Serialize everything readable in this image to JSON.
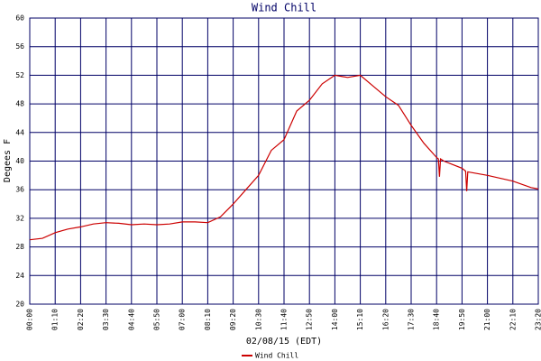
{
  "chart_data": {
    "type": "line",
    "title": "Wind Chill",
    "ylabel": "Degees F",
    "xlabel": "02/08/15 (EDT)",
    "xlim": [
      0,
      1400
    ],
    "ylim": [
      20,
      60
    ],
    "yticks": [
      20,
      24,
      28,
      32,
      36,
      40,
      44,
      48,
      52,
      56,
      60
    ],
    "xticks": [
      {
        "value": 0,
        "label": "00:00"
      },
      {
        "value": 70,
        "label": "01:10"
      },
      {
        "value": 140,
        "label": "02:20"
      },
      {
        "value": 210,
        "label": "03:30"
      },
      {
        "value": 280,
        "label": "04:40"
      },
      {
        "value": 350,
        "label": "05:50"
      },
      {
        "value": 420,
        "label": "07:00"
      },
      {
        "value": 490,
        "label": "08:10"
      },
      {
        "value": 560,
        "label": "09:20"
      },
      {
        "value": 630,
        "label": "10:30"
      },
      {
        "value": 700,
        "label": "11:40"
      },
      {
        "value": 770,
        "label": "12:50"
      },
      {
        "value": 840,
        "label": "14:00"
      },
      {
        "value": 910,
        "label": "15:10"
      },
      {
        "value": 980,
        "label": "16:20"
      },
      {
        "value": 1050,
        "label": "17:30"
      },
      {
        "value": 1120,
        "label": "18:40"
      },
      {
        "value": 1190,
        "label": "19:50"
      },
      {
        "value": 1260,
        "label": "21:00"
      },
      {
        "value": 1330,
        "label": "22:10"
      },
      {
        "value": 1400,
        "label": "23:20"
      }
    ],
    "grid": true,
    "series": [
      {
        "name": "Wind Chill",
        "color": "#cc0000",
        "x": [
          0,
          35,
          70,
          105,
          140,
          175,
          210,
          245,
          280,
          315,
          350,
          385,
          420,
          455,
          490,
          525,
          560,
          595,
          630,
          665,
          700,
          735,
          770,
          805,
          840,
          875,
          910,
          945,
          980,
          1015,
          1050,
          1085,
          1120,
          1125,
          1128,
          1131,
          1140,
          1190,
          1200,
          1203,
          1206,
          1260,
          1330,
          1380,
          1400
        ],
        "values": [
          29,
          29.2,
          30,
          30.5,
          30.8,
          31.2,
          31.4,
          31.3,
          31.1,
          31.2,
          31.1,
          31.2,
          31.5,
          31.5,
          31.4,
          32.2,
          34,
          36,
          38,
          41.5,
          43,
          47,
          48.5,
          50.8,
          52,
          51.7,
          52,
          50.5,
          49,
          47.8,
          45,
          42.5,
          40.5,
          40.3,
          37.8,
          40.3,
          40,
          39,
          38.6,
          35.8,
          38.5,
          38,
          37.2,
          36.3,
          36.1
        ]
      }
    ]
  }
}
